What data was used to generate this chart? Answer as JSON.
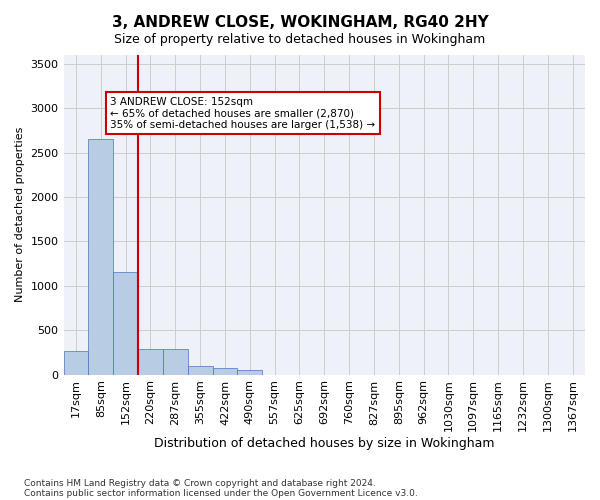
{
  "title_line1": "3, ANDREW CLOSE, WOKINGHAM, RG40 2HY",
  "title_line2": "Size of property relative to detached houses in Wokingham",
  "xlabel": "Distribution of detached houses by size in Wokingham",
  "ylabel": "Number of detached properties",
  "bin_labels": [
    "17sqm",
    "85sqm",
    "152sqm",
    "220sqm",
    "287sqm",
    "355sqm",
    "422sqm",
    "490sqm",
    "557sqm",
    "625sqm",
    "692sqm",
    "760sqm",
    "827sqm",
    "895sqm",
    "962sqm",
    "1030sqm",
    "1097sqm",
    "1165sqm",
    "1232sqm",
    "1300sqm",
    "1367sqm"
  ],
  "bar_values": [
    270,
    2650,
    1150,
    290,
    290,
    100,
    70,
    50,
    0,
    0,
    0,
    0,
    0,
    0,
    0,
    0,
    0,
    0,
    0,
    0,
    0
  ],
  "bar_color": "#b8cce4",
  "bar_edge_color": "#4472c4",
  "grid_color": "#cccccc",
  "bg_color": "#eef2f8",
  "subject_bin_index": 2,
  "subject_line_color": "#cc0000",
  "annotation_text": "3 ANDREW CLOSE: 152sqm\n← 65% of detached houses are smaller (2,870)\n35% of semi-detached houses are larger (1,538) →",
  "annotation_box_color": "#cc0000",
  "ylim": [
    0,
    3600
  ],
  "yticks": [
    0,
    500,
    1000,
    1500,
    2000,
    2500,
    3000,
    3500
  ],
  "footer_line1": "Contains HM Land Registry data © Crown copyright and database right 2024.",
  "footer_line2": "Contains public sector information licensed under the Open Government Licence v3.0."
}
